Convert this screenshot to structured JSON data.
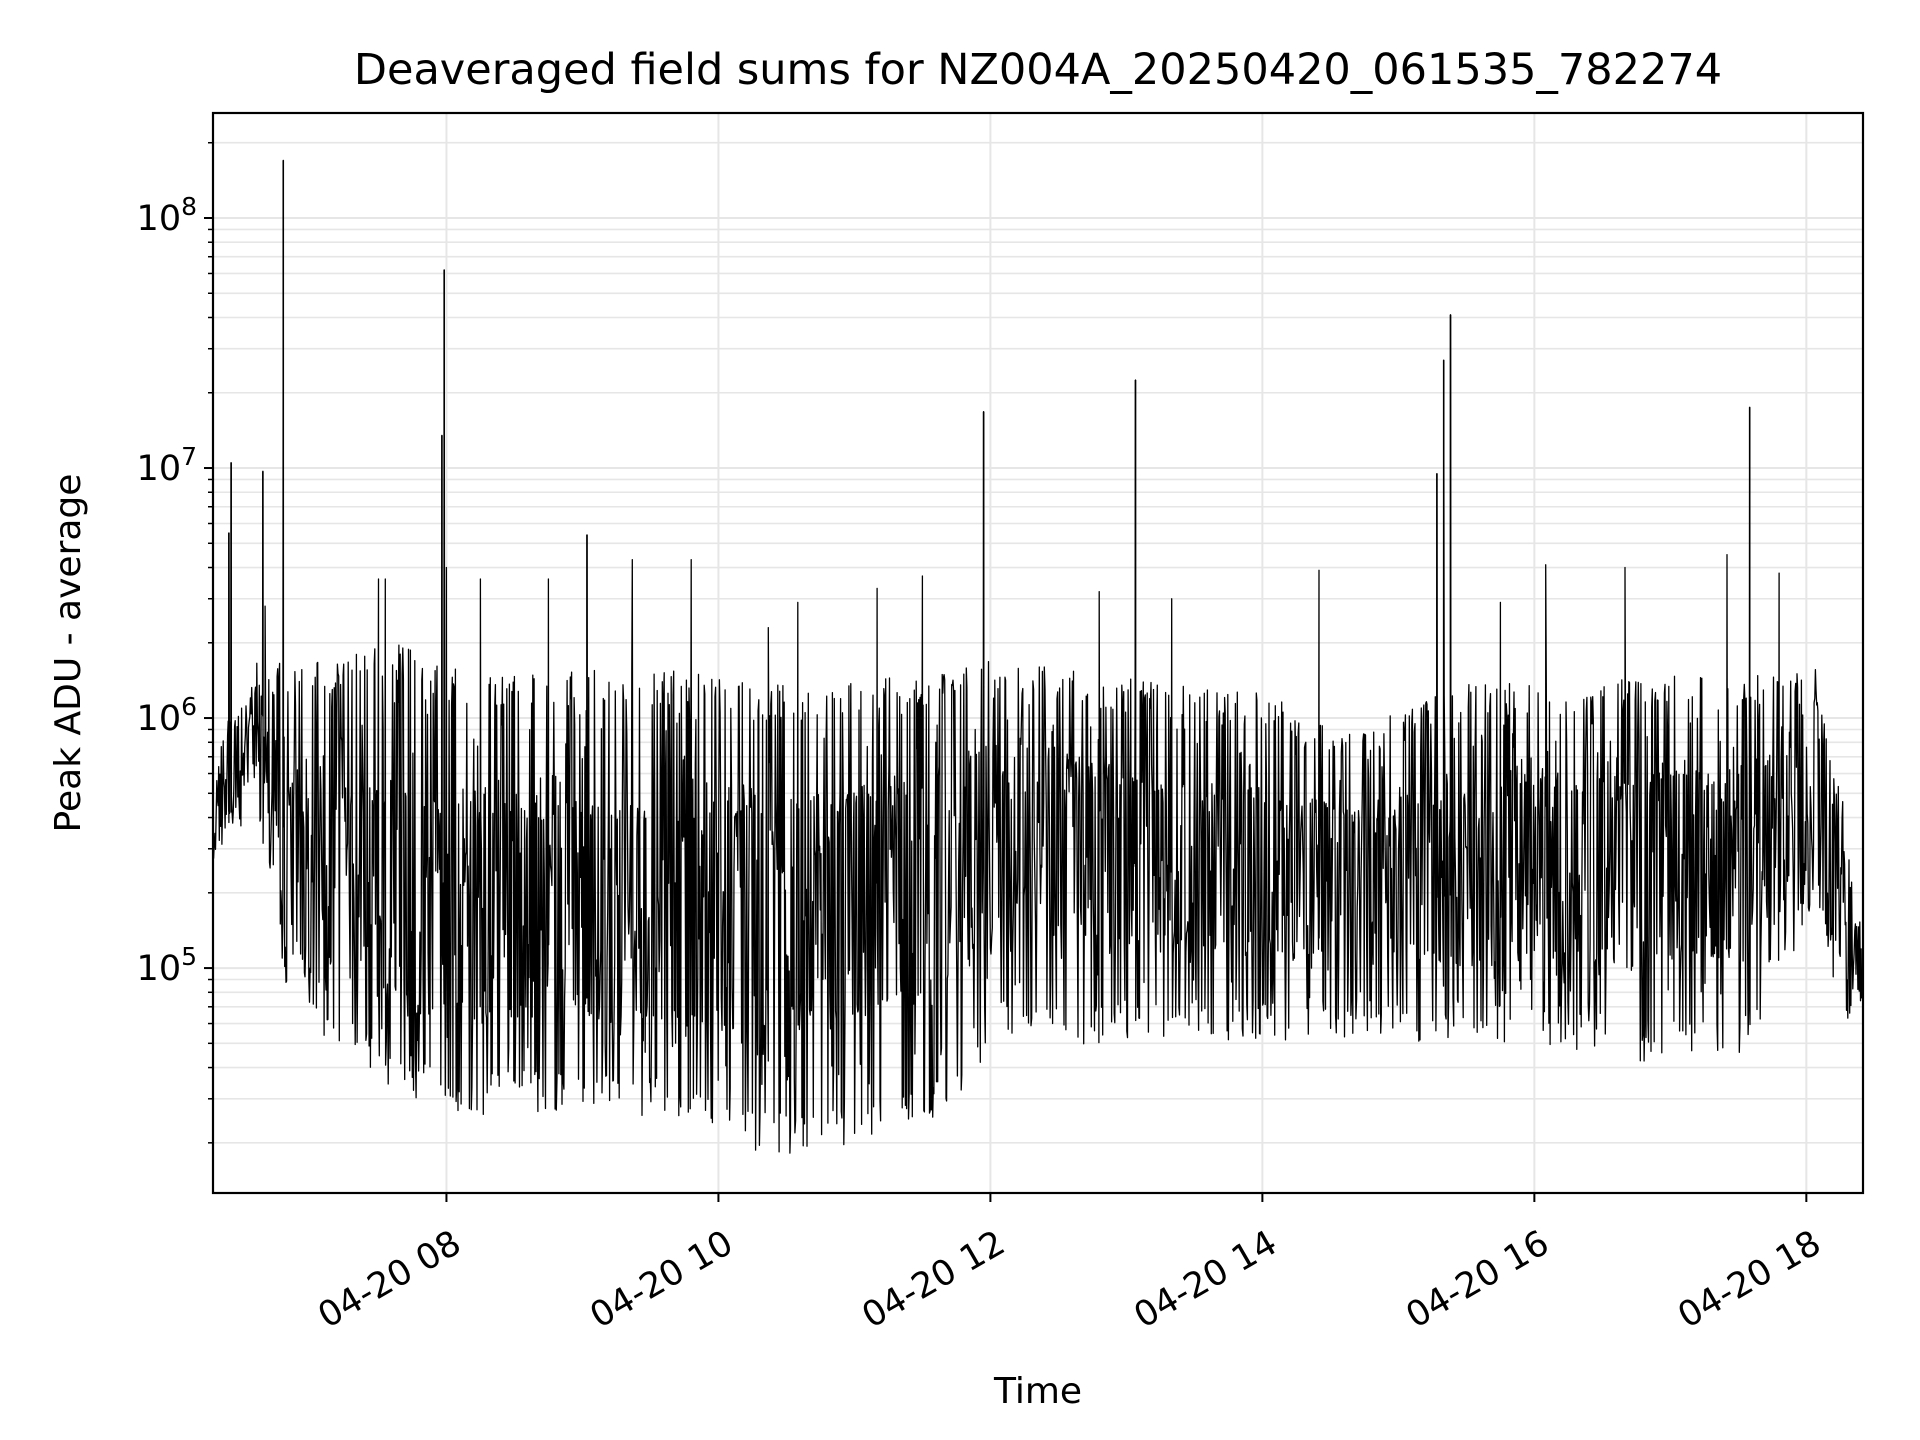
{
  "chart_data": {
    "type": "line",
    "title": "Deaveraged field sums for NZ004A_20250420_061535_782274",
    "xlabel": "Time",
    "ylabel": "Peak ADU - average",
    "yscale": "log",
    "grid": true,
    "xlim": [
      "2025-04-20 06:17",
      "2025-04-20 18:25"
    ],
    "ylim": [
      12600,
      263000000
    ],
    "x_ticks": [
      {
        "value": "2025-04-20 08:00",
        "label": "04-20 08"
      },
      {
        "value": "2025-04-20 10:00",
        "label": "04-20 10"
      },
      {
        "value": "2025-04-20 12:00",
        "label": "04-20 12"
      },
      {
        "value": "2025-04-20 14:00",
        "label": "04-20 14"
      },
      {
        "value": "2025-04-20 16:00",
        "label": "04-20 16"
      },
      {
        "value": "2025-04-20 18:00",
        "label": "04-20 18"
      }
    ],
    "y_ticks": [
      {
        "value": 100000,
        "base": "10",
        "exp": "5"
      },
      {
        "value": 1000000,
        "base": "10",
        "exp": "6"
      },
      {
        "value": 10000000,
        "base": "10",
        "exp": "7"
      },
      {
        "value": 100000000,
        "base": "10",
        "exp": "8"
      }
    ],
    "series": [
      {
        "color": "#000000",
        "spikes": [
          {
            "x": "2025-04-20 06:24",
            "y": 5500000
          },
          {
            "x": "2025-04-20 06:25",
            "y": 10500000
          },
          {
            "x": "2025-04-20 06:39",
            "y": 9700000
          },
          {
            "x": "2025-04-20 06:48",
            "y": 170000000
          },
          {
            "x": "2025-04-20 07:58",
            "y": 13500000
          },
          {
            "x": "2025-04-20 07:59",
            "y": 62000000
          },
          {
            "x": "2025-04-20 09:02",
            "y": 5400000
          },
          {
            "x": "2025-04-20 11:57",
            "y": 16800000
          },
          {
            "x": "2025-04-20 13:04",
            "y": 22500000
          },
          {
            "x": "2025-04-20 15:17",
            "y": 9500000
          },
          {
            "x": "2025-04-20 15:20",
            "y": 27000000
          },
          {
            "x": "2025-04-20 15:23",
            "y": 41000000
          },
          {
            "x": "2025-04-20 17:35",
            "y": 17500000
          }
        ],
        "envelope": [
          {
            "x": "2025-04-20 06:17",
            "y": 450000
          },
          {
            "x": "2025-04-20 06:30",
            "y": 400000
          },
          {
            "x": "2025-04-20 06:35",
            "y": 1100000
          },
          {
            "x": "2025-04-20 06:45",
            "y": 900000
          },
          {
            "x": "2025-04-20 06:50",
            "y": 200000
          },
          {
            "x": "2025-04-20 07:00",
            "y": 120000
          },
          {
            "x": "2025-04-20 07:20",
            "y": 160000
          },
          {
            "x": "2025-04-20 07:40",
            "y": 150000
          },
          {
            "x": "2025-04-20 08:00",
            "y": 140000
          },
          {
            "x": "2025-04-20 08:30",
            "y": 130000
          },
          {
            "x": "2025-04-20 09:00",
            "y": 140000
          },
          {
            "x": "2025-04-20 09:30",
            "y": 130000
          },
          {
            "x": "2025-04-20 10:00",
            "y": 150000
          },
          {
            "x": "2025-04-20 10:30",
            "y": 180000
          },
          {
            "x": "2025-04-20 11:00",
            "y": 200000
          },
          {
            "x": "2025-04-20 11:30",
            "y": 220000
          },
          {
            "x": "2025-04-20 12:00",
            "y": 400000
          },
          {
            "x": "2025-04-20 12:30",
            "y": 380000
          },
          {
            "x": "2025-04-20 13:00",
            "y": 260000
          },
          {
            "x": "2025-04-20 13:30",
            "y": 220000
          },
          {
            "x": "2025-04-20 14:00",
            "y": 240000
          },
          {
            "x": "2025-04-20 14:30",
            "y": 200000
          },
          {
            "x": "2025-04-20 15:00",
            "y": 180000
          },
          {
            "x": "2025-04-20 15:30",
            "y": 200000
          },
          {
            "x": "2025-04-20 16:00",
            "y": 220000
          },
          {
            "x": "2025-04-20 16:30",
            "y": 230000
          },
          {
            "x": "2025-04-20 17:00",
            "y": 250000
          },
          {
            "x": "2025-04-20 17:30",
            "y": 280000
          },
          {
            "x": "2025-04-20 18:00",
            "y": 450000
          },
          {
            "x": "2025-04-20 18:15",
            "y": 800000
          },
          {
            "x": "2025-04-20 18:20",
            "y": 150000
          },
          {
            "x": "2025-04-20 18:25",
            "y": 110000
          }
        ],
        "spread": [
          {
            "x": "2025-04-20 06:17",
            "low": 250000,
            "high": 650000
          },
          {
            "x": "2025-04-20 06:35",
            "low": 500000,
            "high": 1700000
          },
          {
            "x": "2025-04-20 06:50",
            "low": 90000,
            "high": 1600000
          },
          {
            "x": "2025-04-20 07:10",
            "low": 55000,
            "high": 1600000
          },
          {
            "x": "2025-04-20 07:35",
            "low": 40000,
            "high": 2000000
          },
          {
            "x": "2025-04-20 08:00",
            "low": 30000,
            "high": 1500000
          },
          {
            "x": "2025-04-20 09:00",
            "low": 32000,
            "high": 1500000
          },
          {
            "x": "2025-04-20 09:45",
            "low": 28000,
            "high": 1500000
          },
          {
            "x": "2025-04-20 10:15",
            "low": 22000,
            "high": 1300000
          },
          {
            "x": "2025-04-20 10:45",
            "low": 20000,
            "high": 1300000
          },
          {
            "x": "2025-04-20 11:15",
            "low": 25000,
            "high": 1400000
          },
          {
            "x": "2025-04-20 11:45",
            "low": 30000,
            "high": 1450000
          },
          {
            "x": "2025-04-20 12:00",
            "low": 60000,
            "high": 1700000
          },
          {
            "x": "2025-04-20 12:30",
            "low": 55000,
            "high": 1500000
          },
          {
            "x": "2025-04-20 13:00",
            "low": 60000,
            "high": 1400000
          },
          {
            "x": "2025-04-20 14:00",
            "low": 60000,
            "high": 1200000
          },
          {
            "x": "2025-04-20 14:45",
            "low": 60000,
            "high": 900000
          },
          {
            "x": "2025-04-20 15:30",
            "low": 60000,
            "high": 1300000
          },
          {
            "x": "2025-04-20 16:30",
            "low": 50000,
            "high": 1400000
          },
          {
            "x": "2025-04-20 17:30",
            "low": 50000,
            "high": 1400000
          },
          {
            "x": "2025-04-20 18:05",
            "low": 200000,
            "high": 1500000
          },
          {
            "x": "2025-04-20 18:18",
            "low": 60000,
            "high": 300000
          },
          {
            "x": "2025-04-20 18:25",
            "low": 70000,
            "high": 150000
          }
        ],
        "tall_peaks": [
          {
            "x": "2025-04-20 06:40",
            "y": 2800000
          },
          {
            "x": "2025-04-20 07:30",
            "y": 3600000
          },
          {
            "x": "2025-04-20 07:33",
            "y": 3600000
          },
          {
            "x": "2025-04-20 08:00",
            "y": 4000000
          },
          {
            "x": "2025-04-20 08:15",
            "y": 3600000
          },
          {
            "x": "2025-04-20 08:45",
            "y": 3600000
          },
          {
            "x": "2025-04-20 09:22",
            "y": 4300000
          },
          {
            "x": "2025-04-20 09:48",
            "y": 4300000
          },
          {
            "x": "2025-04-20 10:22",
            "y": 2300000
          },
          {
            "x": "2025-04-20 10:35",
            "y": 2900000
          },
          {
            "x": "2025-04-20 11:10",
            "y": 3300000
          },
          {
            "x": "2025-04-20 11:30",
            "y": 3700000
          },
          {
            "x": "2025-04-20 12:48",
            "y": 3200000
          },
          {
            "x": "2025-04-20 13:20",
            "y": 3000000
          },
          {
            "x": "2025-04-20 14:25",
            "y": 3900000
          },
          {
            "x": "2025-04-20 15:45",
            "y": 2900000
          },
          {
            "x": "2025-04-20 16:05",
            "y": 4100000
          },
          {
            "x": "2025-04-20 16:40",
            "y": 4000000
          },
          {
            "x": "2025-04-20 17:25",
            "y": 4500000
          },
          {
            "x": "2025-04-20 17:48",
            "y": 3800000
          }
        ]
      }
    ]
  }
}
